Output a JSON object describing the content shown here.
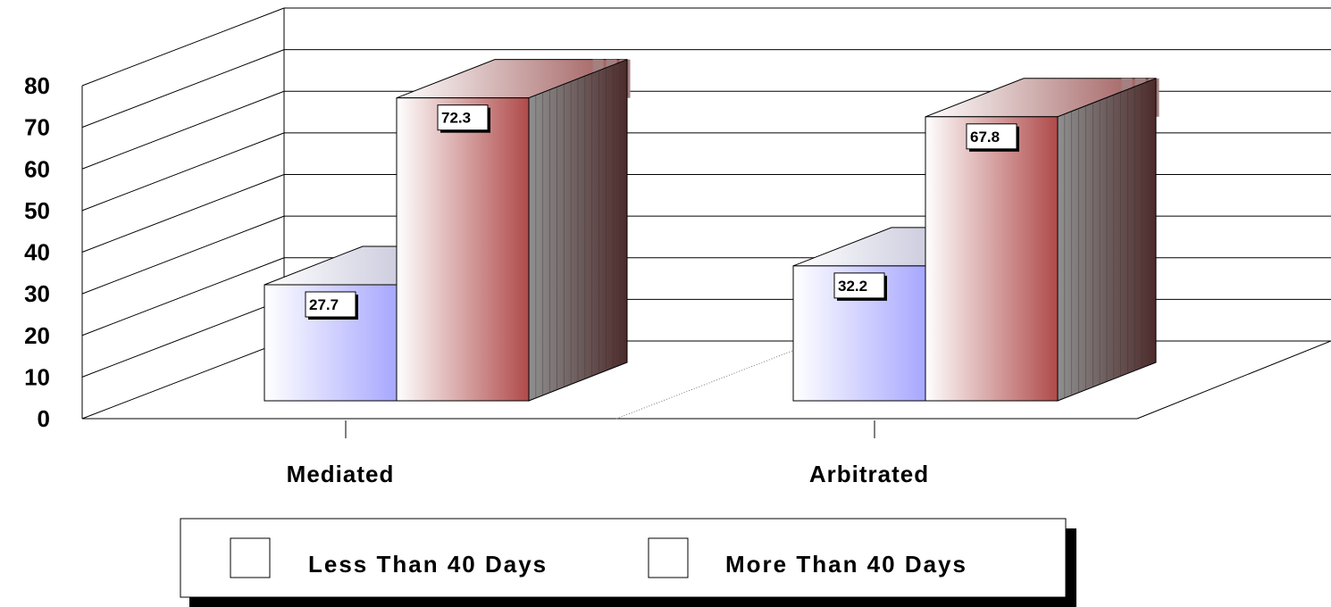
{
  "chart_data": {
    "type": "bar",
    "title": "",
    "xlabel": "",
    "ylabel": "",
    "categories": [
      "Mediated",
      "Arbitrated"
    ],
    "series": [
      {
        "name": "Less Than 40 Days",
        "values": [
          27.7,
          32.2
        ]
      },
      {
        "name": "More Than 40 Days",
        "values": [
          72.3,
          67.8
        ]
      }
    ],
    "ylim": [
      0,
      80
    ],
    "yticks": [
      "0",
      "10",
      "20",
      "30",
      "40",
      "50",
      "60",
      "70",
      "80"
    ],
    "grid": true,
    "style": "3d",
    "legend_position": "bottom",
    "colors": {
      "series_1_light": "#ffffff",
      "series_1_dark": "#a7a7ff",
      "series_1_top": "#a9a9c8",
      "series_2_light": "#ffffff",
      "series_2_dark": "#b04a4a",
      "series_2_top": "#9c7c7c",
      "series_2_side": "#4e3535"
    }
  }
}
